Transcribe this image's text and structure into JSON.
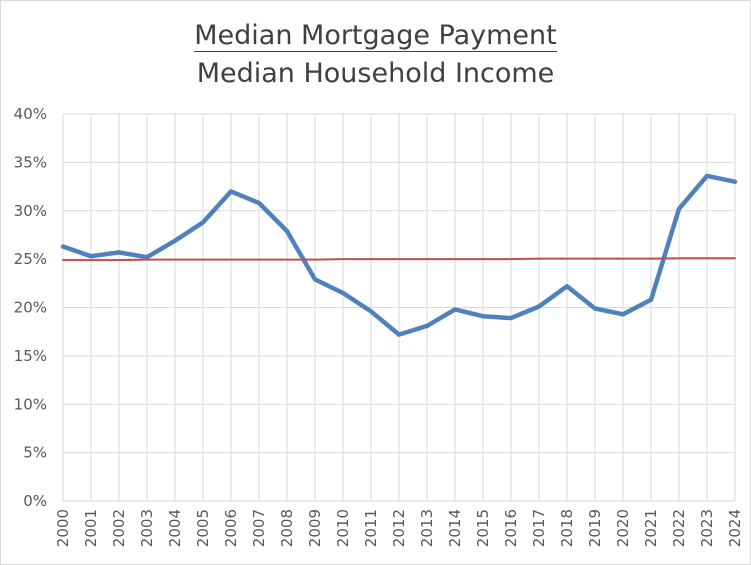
{
  "chart_data": {
    "type": "line",
    "title_numerator": "Median Mortgage Payment",
    "title_denominator": "Median Household Income",
    "xlabel": "",
    "ylabel": "",
    "x": [
      "2000",
      "2001",
      "2002",
      "2003",
      "2004",
      "2005",
      "2006",
      "2007",
      "2008",
      "2009",
      "2010",
      "2011",
      "2012",
      "2013",
      "2014",
      "2015",
      "2016",
      "2017",
      "2018",
      "2019",
      "2020",
      "2021",
      "2022",
      "2023",
      "2024"
    ],
    "ylim": [
      0,
      40
    ],
    "yticks": [
      "0%",
      "5%",
      "10%",
      "15%",
      "20%",
      "25%",
      "30%",
      "35%",
      "40%"
    ],
    "grid": true,
    "series": [
      {
        "color": "#4f81bd",
        "values": [
          26.3,
          25.3,
          25.7,
          25.2,
          26.9,
          28.8,
          32.0,
          30.8,
          27.9,
          22.9,
          21.5,
          19.6,
          17.2,
          18.1,
          19.8,
          19.1,
          18.9,
          20.1,
          22.2,
          19.9,
          19.3,
          20.8,
          30.2,
          33.6,
          33.0
        ]
      },
      {
        "color": "#c0504d",
        "values": [
          24.9,
          24.9,
          24.9,
          24.95,
          24.95,
          24.95,
          24.95,
          24.95,
          24.95,
          24.95,
          25.0,
          25.0,
          25.0,
          25.0,
          25.0,
          25.0,
          25.0,
          25.05,
          25.05,
          25.05,
          25.05,
          25.05,
          25.1,
          25.1,
          25.1
        ]
      }
    ]
  }
}
